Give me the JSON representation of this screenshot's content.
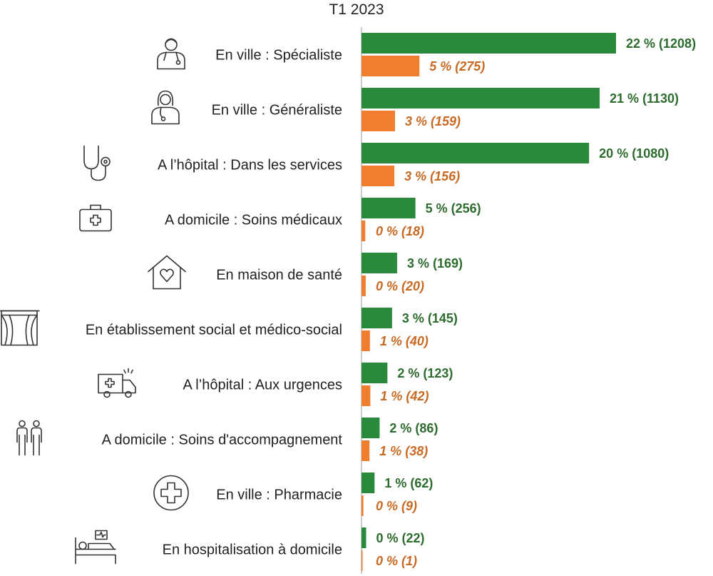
{
  "chart_data": {
    "type": "bar",
    "orientation": "horizontal",
    "title": "T1 2023",
    "grid": false,
    "legend": "none",
    "xlim": [
      0,
      22
    ],
    "colors": {
      "green": "#2a8a3c",
      "orange": "#ef7f2f",
      "green_text": "#2e6b2e",
      "orange_text": "#c96a24"
    },
    "categories": [
      {
        "label": "En ville : Spécialiste",
        "icon": "doctor-male-icon",
        "green": {
          "pct": 22,
          "count": 1208,
          "text": "22 % (1208)"
        },
        "orange": {
          "pct": 5,
          "count": 275,
          "text": "5 % (275)"
        }
      },
      {
        "label": "En ville : Généraliste",
        "icon": "doctor-female-icon",
        "green": {
          "pct": 21,
          "count": 1130,
          "text": "21 % (1130)"
        },
        "orange": {
          "pct": 3,
          "count": 159,
          "text": "3 % (159)"
        }
      },
      {
        "label": "A l’hôpital : Dans les services",
        "icon": "stethoscope-icon",
        "green": {
          "pct": 20,
          "count": 1080,
          "text": "20 % (1080)"
        },
        "orange": {
          "pct": 3,
          "count": 156,
          "text": "3 % (156)"
        }
      },
      {
        "label": "A domicile : Soins médicaux",
        "icon": "medical-bag-icon",
        "green": {
          "pct": 5,
          "count": 256,
          "text": "5 % (256)"
        },
        "orange": {
          "pct": 0,
          "count": 18,
          "text": "0 % (18)"
        }
      },
      {
        "label": "En maison de santé",
        "icon": "house-heart-icon",
        "green": {
          "pct": 3,
          "count": 169,
          "text": "3 % (169)"
        },
        "orange": {
          "pct": 0,
          "count": 20,
          "text": "0 % (20)"
        }
      },
      {
        "label": "En établissement social et médico-social",
        "icon": "window-curtains-icon",
        "green": {
          "pct": 3,
          "count": 145,
          "text": "3 % (145)"
        },
        "orange": {
          "pct": 1,
          "count": 40,
          "text": "1 % (40)"
        }
      },
      {
        "label": "A l’hôpital : Aux urgences",
        "icon": "ambulance-icon",
        "green": {
          "pct": 2,
          "count": 123,
          "text": "2 % (123)"
        },
        "orange": {
          "pct": 1,
          "count": 42,
          "text": "1 % (42)"
        }
      },
      {
        "label": "A domicile : Soins d'accompagnement",
        "icon": "two-people-icon",
        "green": {
          "pct": 2,
          "count": 86,
          "text": "2 % (86)"
        },
        "orange": {
          "pct": 1,
          "count": 38,
          "text": "1 % (38)"
        }
      },
      {
        "label": "En ville : Pharmacie",
        "icon": "pharmacy-cross-icon",
        "green": {
          "pct": 1,
          "count": 62,
          "text": "1 % (62)"
        },
        "orange": {
          "pct": 0,
          "count": 9,
          "text": "0 % (9)"
        }
      },
      {
        "label": "En hospitalisation à domicile",
        "icon": "hospital-bed-icon",
        "green": {
          "pct": 0,
          "count": 22,
          "text": "0 % (22)"
        },
        "orange": {
          "pct": 0,
          "count": 1,
          "text": "0 % (1)"
        }
      }
    ]
  }
}
